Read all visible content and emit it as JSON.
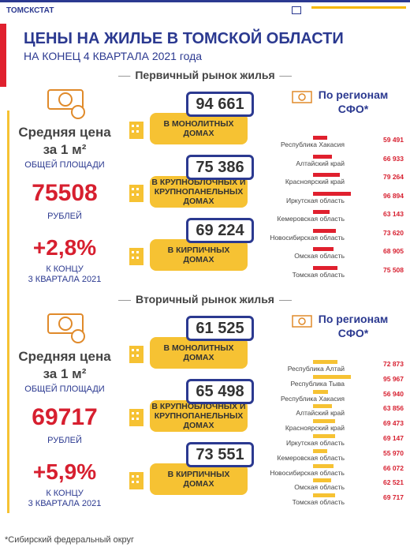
{
  "header": {
    "agency": "ТОМСКСТАТ",
    "title": "ЦЕНЫ НА ЖИЛЬЕ В ТОМСКОЙ ОБЛАСТИ",
    "subtitle": "НА КОНЕЦ 4 КВАРТАЛА 2021 года"
  },
  "sections": [
    {
      "heading": "Первичный рынок жилья",
      "avg_label": [
        "Средняя цена",
        "за 1 м²",
        "ОБЩЕЙ ПЛОЩАДИ"
      ],
      "avg_value": "75508",
      "currency": "РУБЛЕЙ",
      "change": "+2,8%",
      "change_label": [
        "К КОНЦУ",
        "3 КВАРТАЛА 2021"
      ],
      "types": [
        {
          "price": "94 661",
          "label": [
            "В МОНОЛИТНЫХ",
            "ДОМАХ"
          ]
        },
        {
          "price": "75 386",
          "label": [
            "В КРУПНОБЛОЧНЫХ И",
            "КРУПНОПАНЕЛЬНЫХ",
            "ДОМАХ"
          ]
        },
        {
          "price": "69 224",
          "label": [
            "В КИРПИЧНЫХ",
            "ДОМАХ"
          ]
        }
      ],
      "regions_title": [
        "По регионам",
        "СФО*"
      ],
      "regions": [
        "Республика Хакасия",
        "Алтайский край",
        "Красноярский край",
        "Иркутская область",
        "Кемеровская область",
        "Новосибирская область",
        "Омская область",
        "Томская область"
      ],
      "values": [
        59491,
        66933,
        79264,
        96894,
        63143,
        73620,
        68905,
        75508
      ],
      "value_labels": [
        "59 491",
        "66 933",
        "79 264",
        "96 894",
        "63 143",
        "73 620",
        "68 905",
        "75 508"
      ]
    },
    {
      "heading": "Вторичный рынок жилья",
      "avg_label": [
        "Средняя цена",
        "за 1 м²",
        "ОБЩЕЙ ПЛОЩАДИ"
      ],
      "avg_value": "69717",
      "currency": "РУБЛЕЙ",
      "change": "+5,9%",
      "change_label": [
        "К КОНЦУ",
        "3 КВАРТАЛА 2021"
      ],
      "types": [
        {
          "price": "61 525",
          "label": [
            "В МОНОЛИТНЫХ",
            "ДОМАХ"
          ]
        },
        {
          "price": "65 498",
          "label": [
            "В КРУПНОБЛОЧНЫХ И",
            "КРУПНОПАНЕЛЬНЫХ",
            "ДОМАХ"
          ]
        },
        {
          "price": "73 551",
          "label": [
            "В КИРПИЧНЫХ",
            "ДОМАХ"
          ]
        }
      ],
      "regions_title": [
        "По регионам",
        "СФО*"
      ],
      "regions": [
        "Республика Алтай",
        "Республика Тыва",
        "Республика Хакасия",
        "Алтайский край",
        "Красноярский край",
        "Иркутская область",
        "Кемеровская область",
        "Новосибирская область",
        "Омская область",
        "Томская область"
      ],
      "values": [
        72873,
        95967,
        56940,
        63856,
        69473,
        69147,
        55970,
        66072,
        62521,
        69717
      ],
      "value_labels": [
        "72 873",
        "95 967",
        "56 940",
        "63 856",
        "69 473",
        "69 147",
        "55 970",
        "66 072",
        "62 521",
        "69 717"
      ]
    }
  ],
  "footnote": "*Сибирский федеральный округ"
}
